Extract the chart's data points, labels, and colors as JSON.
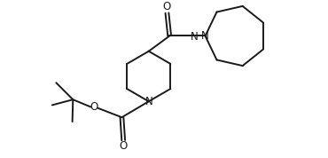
{
  "background_color": "#ffffff",
  "line_color": "#1a1a1a",
  "line_width": 1.4,
  "font_size": 8.5,
  "figsize": [
    3.7,
    1.78
  ],
  "dpi": 100,
  "xlim": [
    0,
    10
  ],
  "ylim": [
    0,
    5
  ]
}
